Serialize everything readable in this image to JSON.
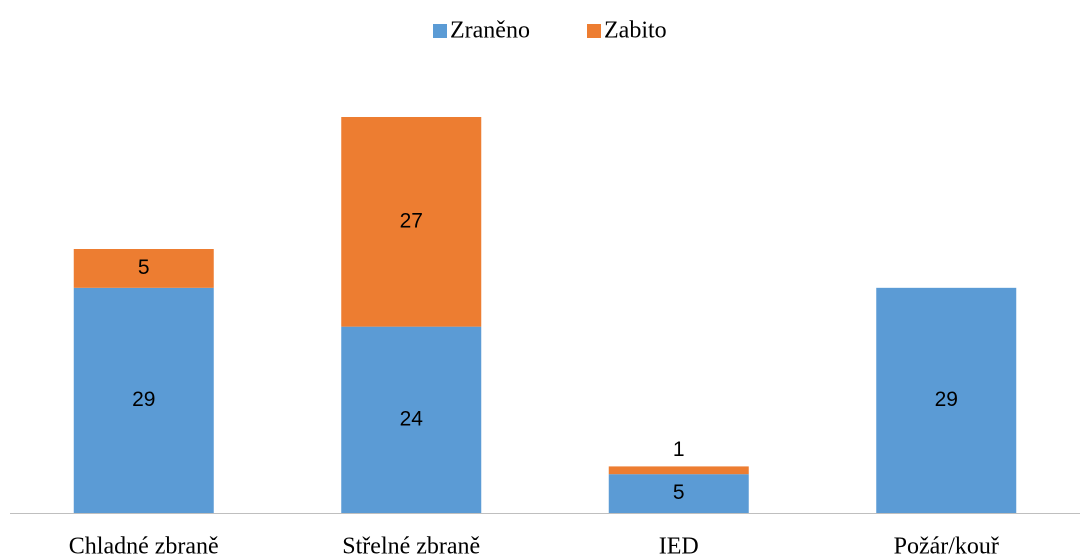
{
  "chart_data": {
    "type": "bar",
    "stacked": true,
    "categories": [
      "Chladné zbraně",
      "Střelné zbraně",
      "IED",
      "Požár/kouř"
    ],
    "series": [
      {
        "name": "Zraněno",
        "color": "#5b9bd5",
        "values": [
          29,
          24,
          5,
          29
        ]
      },
      {
        "name": "Zabito",
        "color": "#ed7d31",
        "values": [
          5,
          27,
          1,
          0
        ]
      }
    ],
    "legend": "top"
  }
}
